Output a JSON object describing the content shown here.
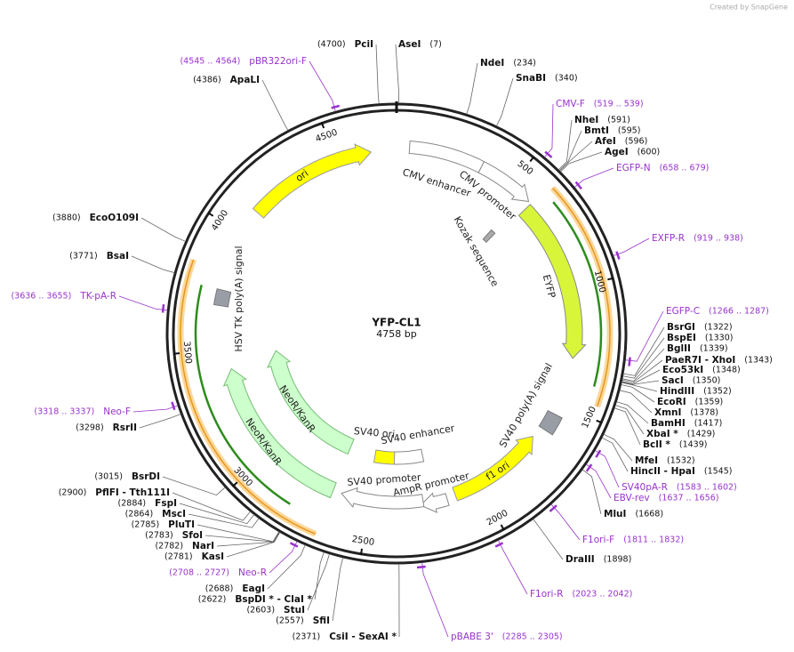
{
  "header": {
    "credit": "Created by SnapGene"
  },
  "plasmid": {
    "name": "YFP-CL1",
    "length": {
      "value": 4758,
      "label": "4758 bp"
    },
    "ticks": [
      500,
      1000,
      1500,
      2000,
      2500,
      3000,
      3500,
      4000,
      4500
    ]
  },
  "features": [
    {
      "label": "ori"
    },
    {
      "label": "CMV enhancer"
    },
    {
      "label": "CMV promoter"
    },
    {
      "label": "Kozak sequence"
    },
    {
      "label": "EYFP"
    },
    {
      "label": "SV40 poly(A) signal"
    },
    {
      "label": "f1 ori"
    },
    {
      "label": "AmpR promoter"
    },
    {
      "label": "SV40 promoter"
    },
    {
      "label": "SV40 enhancer"
    },
    {
      "label": "SV40 ori"
    },
    {
      "label": "NeoR/KanR"
    },
    {
      "label": "NeoR/KanR"
    },
    {
      "label": "HSV TK poly(A) signal"
    }
  ],
  "sites": [
    {
      "name": "PciI",
      "position": "(4700)"
    },
    {
      "name": "AseI",
      "position": "(7)"
    },
    {
      "name": "NdeI",
      "position": "(234)"
    },
    {
      "name": "SnaBI",
      "position": "(340)"
    },
    {
      "name": "NheI",
      "position": "(591)"
    },
    {
      "name": "BmtI",
      "position": "(595)"
    },
    {
      "name": "AfeI",
      "position": "(596)"
    },
    {
      "name": "AgeI",
      "position": "(600)"
    },
    {
      "name": "BsrGI",
      "position": "(1322)"
    },
    {
      "name": "BspEI",
      "position": "(1330)"
    },
    {
      "name": "BglII",
      "position": "(1339)"
    },
    {
      "name": "PaeR7I  - XhoI",
      "position": "(1343)"
    },
    {
      "name": "Eco53kI",
      "position": "(1348)"
    },
    {
      "name": "SacI",
      "position": "(1350)"
    },
    {
      "name": "HindIII",
      "position": "(1352)"
    },
    {
      "name": "EcoRI",
      "position": "(1359)"
    },
    {
      "name": "XmnI",
      "position": "(1378)"
    },
    {
      "name": "BamHI",
      "position": "(1417)"
    },
    {
      "name": "XbaI *",
      "position": "(1429)"
    },
    {
      "name": "BclI *",
      "position": "(1439)"
    },
    {
      "name": "MfeI",
      "position": "(1532)"
    },
    {
      "name": "HincII  - HpaI",
      "position": "(1545)"
    },
    {
      "name": "MluI",
      "position": "(1668)"
    },
    {
      "name": "DraIII",
      "position": "(1898)"
    },
    {
      "name": "CsiI  - SexAI *",
      "position": "(2371)"
    },
    {
      "name": "SfiI",
      "position": "(2557)"
    },
    {
      "name": "StuI",
      "position": "(2603)"
    },
    {
      "name": "BspDI *  - ClaI *",
      "position": "(2622)"
    },
    {
      "name": "EagI",
      "position": "(2688)"
    },
    {
      "name": "KasI",
      "position": "(2781)"
    },
    {
      "name": "NarI",
      "position": "(2782)"
    },
    {
      "name": "SfoI",
      "position": "(2783)"
    },
    {
      "name": "PluTI",
      "position": "(2785)"
    },
    {
      "name": "MscI",
      "position": "(2864)"
    },
    {
      "name": "FspI",
      "position": "(2884)"
    },
    {
      "name": "PflFI  - Tth111I",
      "position": "(2900)"
    },
    {
      "name": "BsrDI",
      "position": "(3015)"
    },
    {
      "name": "RsrII",
      "position": "(3298)"
    },
    {
      "name": "BsaI",
      "position": "(3771)"
    },
    {
      "name": "EcoO109I",
      "position": "(3880)"
    },
    {
      "name": "ApaLI",
      "position": "(4386)"
    }
  ],
  "primers": [
    {
      "name": "pBR322ori-F",
      "range": "(4545 .. 4564)"
    },
    {
      "name": "CMV-F",
      "range": "(519 .. 539)"
    },
    {
      "name": "EGFP-N",
      "range": "(658 .. 679)"
    },
    {
      "name": "EXFP-R",
      "range": "(919 .. 938)"
    },
    {
      "name": "EGFP-C",
      "range": "(1266 .. 1287)"
    },
    {
      "name": "SV40pA-R",
      "range": "(1583 .. 1602)"
    },
    {
      "name": "EBV-rev",
      "range": "(1637 .. 1656)"
    },
    {
      "name": "F1ori-F",
      "range": "(1811 .. 1832)"
    },
    {
      "name": "F1ori-R",
      "range": "(2023 .. 2042)"
    },
    {
      "name": "pBABE 3'",
      "range": "(2285 .. 2305)"
    },
    {
      "name": "Neo-R",
      "range": "(2708 .. 2727)"
    },
    {
      "name": "Neo-F",
      "range": "(3318 .. 3337)"
    },
    {
      "name": "TK-pA-R",
      "range": "(3636 .. 3655)"
    }
  ]
}
